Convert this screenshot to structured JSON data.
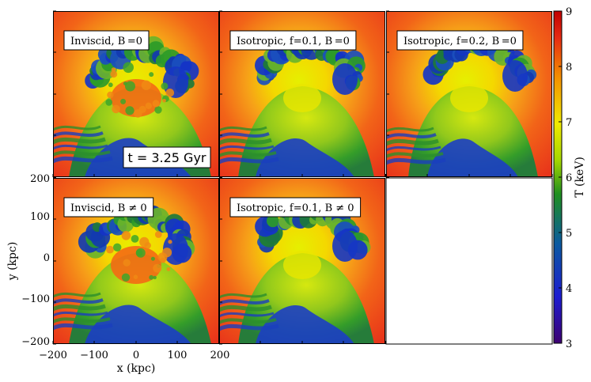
{
  "figure": {
    "panels": [
      {
        "label": "Inviscid, B =0",
        "has_field": false,
        "visc": 0.0
      },
      {
        "label": "Isotropic, f=0.1, B =0",
        "has_field": false,
        "visc": 0.1
      },
      {
        "label": "Isotropic, f=0.2, B =0",
        "has_field": false,
        "visc": 0.2
      },
      {
        "label": "Inviscid, B ≠ 0",
        "has_field": true,
        "visc": 0.0
      },
      {
        "label": "Isotropic, f=0.1,  B ≠ 0",
        "has_field": true,
        "visc": 0.1
      }
    ],
    "time_label": "t = 3.25 Gyr",
    "x_axis": {
      "label": "x  (kpc)",
      "ticks": [
        "−200",
        "−100",
        "0",
        "100",
        "200"
      ]
    },
    "y_axis": {
      "label": "y  (kpc)",
      "ticks": [
        "200",
        "100",
        "0",
        "−100",
        "−200"
      ]
    },
    "top_right_x_tick": "200",
    "colorbar": {
      "label": "T (keV)",
      "ticks": [
        "9",
        "8",
        "7",
        "6",
        "5",
        "4",
        "3"
      ],
      "range": [
        3,
        9
      ],
      "colormap": [
        "#3d0070",
        "#1c1cd0",
        "#0a46a8",
        "#1e8c1e",
        "#9ad500",
        "#f0ea00",
        "#f28a00",
        "#e8201c",
        "#c00000"
      ]
    },
    "colors": {
      "hot": "#ef3a12",
      "warm": "#f6a418",
      "cool": "#1535c8",
      "mid": "#6cc323"
    }
  }
}
